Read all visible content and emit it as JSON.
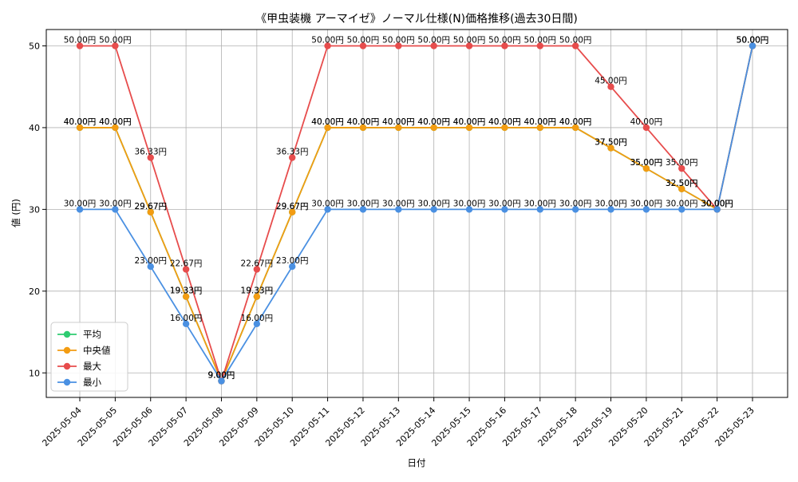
{
  "chart_data": {
    "type": "line",
    "title": "《甲虫装機 アーマイゼ》ノーマル仕様(N)価格推移(過去30日間)",
    "xlabel": "日付",
    "ylabel": "値 (円)",
    "ylim": [
      7,
      52
    ],
    "yticks": [
      10,
      20,
      30,
      40,
      50
    ],
    "grid": true,
    "legend_position": "lower-left",
    "label_suffix": "円",
    "categories": [
      "2025-05-04",
      "2025-05-05",
      "2025-05-06",
      "2025-05-07",
      "2025-05-08",
      "2025-05-09",
      "2025-05-10",
      "2025-05-11",
      "2025-05-12",
      "2025-05-13",
      "2025-05-14",
      "2025-05-15",
      "2025-05-16",
      "2025-05-17",
      "2025-05-18",
      "2025-05-19",
      "2025-05-20",
      "2025-05-21",
      "2025-05-22",
      "2025-05-23"
    ],
    "series": [
      {
        "name": "平均",
        "color": "#2ecc71",
        "values": [
          40,
          40,
          29.67,
          19.33,
          9,
          19.33,
          29.67,
          40,
          40,
          40,
          40,
          40,
          40,
          40,
          40,
          37.5,
          35,
          32.5,
          30,
          50
        ]
      },
      {
        "name": "中央値",
        "color": "#f39c12",
        "values": [
          40,
          40,
          29.67,
          19.33,
          9,
          19.33,
          29.67,
          40,
          40,
          40,
          40,
          40,
          40,
          40,
          40,
          37.5,
          35,
          32.5,
          30,
          50
        ]
      },
      {
        "name": "最大",
        "color": "#e74c4c",
        "values": [
          50,
          50,
          36.33,
          22.67,
          9,
          22.67,
          36.33,
          50,
          50,
          50,
          50,
          50,
          50,
          50,
          50,
          45,
          40,
          35,
          30,
          50
        ]
      },
      {
        "name": "最小",
        "color": "#4a90e2",
        "values": [
          30,
          30,
          23,
          16,
          9,
          16,
          23,
          30,
          30,
          30,
          30,
          30,
          30,
          30,
          30,
          30,
          30,
          30,
          30,
          50
        ]
      }
    ]
  }
}
